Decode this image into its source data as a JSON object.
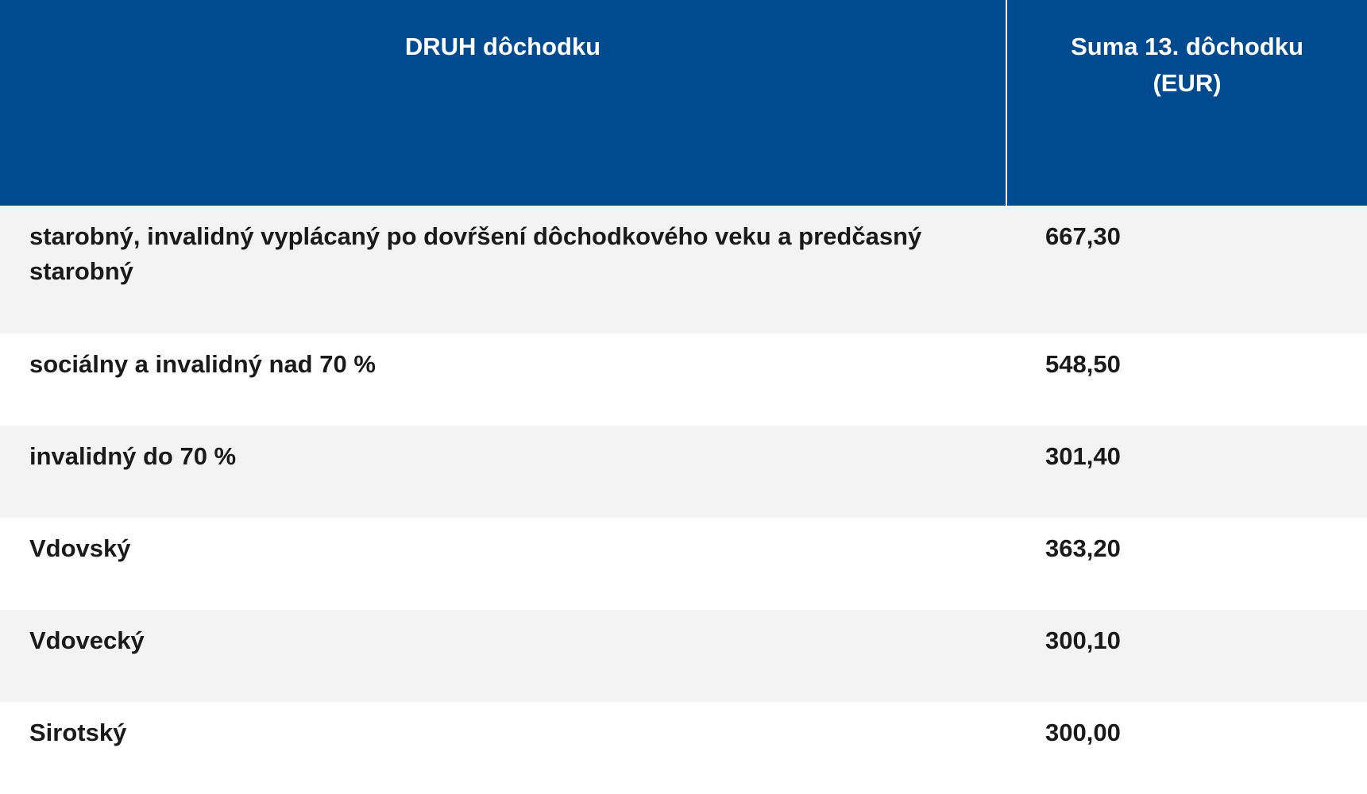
{
  "table": {
    "headers": {
      "type": "DRUH dôchodku",
      "amount_line1": "Suma 13. dôchodku",
      "amount_line2": "(EUR)"
    },
    "rows": [
      {
        "type": "starobný, invalidný vyplácaný po dovŕšení dôchodkového veku a predčasný starobný",
        "amount": "667,30"
      },
      {
        "type": "sociálny a invalidný nad 70 %",
        "amount": "548,50"
      },
      {
        "type": "invalidný do 70 %",
        "amount": "301,40"
      },
      {
        "type": "Vdovský",
        "amount": "363,20"
      },
      {
        "type": "Vdovecký",
        "amount": "300,10"
      },
      {
        "type": "Sirotský",
        "amount": "300,00"
      }
    ]
  },
  "colors": {
    "header_bg": "#004b8f",
    "header_text": "#ffffff",
    "alt_row_bg": "#f3f3f3",
    "body_text": "#1a1a1a"
  }
}
